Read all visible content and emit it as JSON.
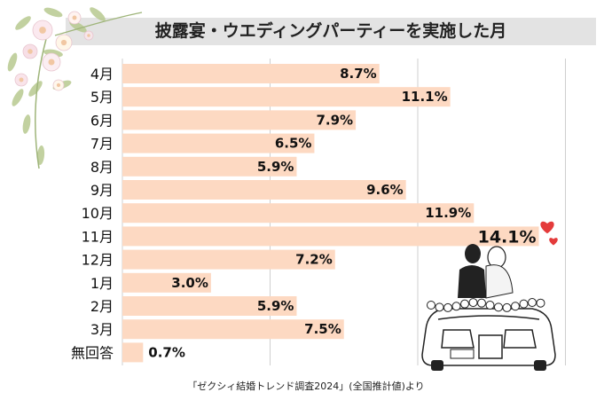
{
  "title": "披露宴・ウエディングパーティーを実施した月",
  "source": "「ゼクシィ結婚トレンド調査2024」(全国推計値)より",
  "colors": {
    "bar": "#fdd9c2",
    "grid": "#cfcfcf",
    "title_band": "#e3e3e3",
    "text": "#111111",
    "heart": "#e43b3b"
  },
  "illustrations": {
    "flowers": "floral-bouquet-illustration",
    "car": "wedding-car-couple-illustration",
    "hearts": "heart-icon"
  },
  "chart_data": {
    "type": "bar",
    "orientation": "horizontal",
    "title": "披露宴・ウエディングパーティーを実施した月",
    "categories": [
      "4月",
      "5月",
      "6月",
      "7月",
      "8月",
      "9月",
      "10月",
      "11月",
      "12月",
      "1月",
      "2月",
      "3月",
      "無回答"
    ],
    "values": [
      8.7,
      11.1,
      7.9,
      6.5,
      5.9,
      9.6,
      11.9,
      14.1,
      7.2,
      3.0,
      5.9,
      7.5,
      0.7
    ],
    "labels": [
      "8.7%",
      "11.1%",
      "7.9%",
      "6.5%",
      "5.9%",
      "9.6%",
      "11.9%",
      "14.1%",
      "7.2%",
      "3.0%",
      "5.9%",
      "7.5%",
      "0.7%"
    ],
    "unit": "%",
    "xlim": [
      0,
      15
    ],
    "grid": true,
    "highlight": "11月"
  }
}
